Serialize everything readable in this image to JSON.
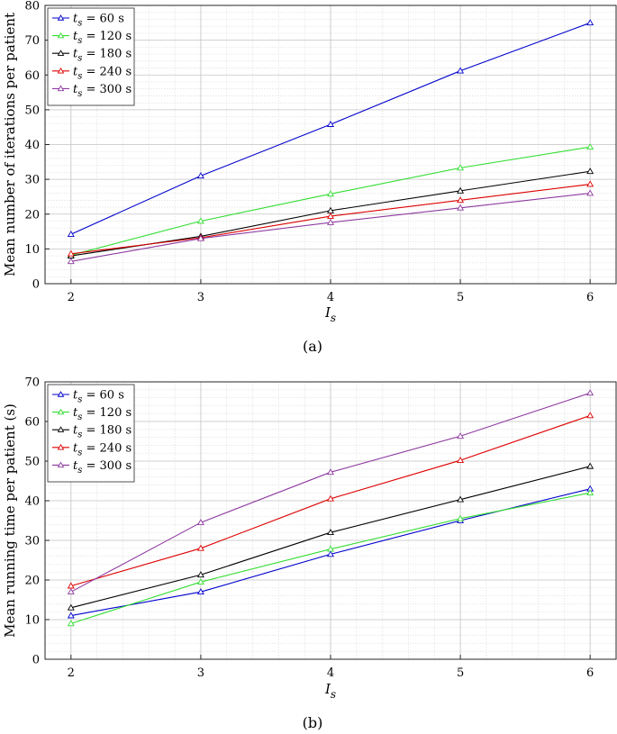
{
  "chart_data": [
    {
      "type": "line",
      "caption": "(a)",
      "title": "",
      "xlabel": "I_s",
      "ylabel": "Mean number of iterations per patient",
      "x": [
        2,
        3,
        4,
        5,
        6
      ],
      "xlim": [
        1.8,
        6.2
      ],
      "ylim": [
        0,
        80
      ],
      "xticks": [
        2,
        3,
        4,
        5,
        6
      ],
      "yticks": [
        0,
        10,
        20,
        30,
        40,
        50,
        60,
        70,
        80
      ],
      "grid": true,
      "legend_position": "top-left",
      "series": [
        {
          "name": "t_s = 60 s",
          "color": "#0000cc",
          "values": [
            14.2,
            31.0,
            45.8,
            61.2,
            75.0
          ]
        },
        {
          "name": "t_s = 120 s",
          "color": "#33dd33",
          "values": [
            8.2,
            18.0,
            25.8,
            33.3,
            39.3
          ]
        },
        {
          "name": "t_s = 180 s",
          "color": "#000000",
          "values": [
            8.0,
            13.6,
            21.0,
            26.7,
            32.3
          ]
        },
        {
          "name": "t_s = 240 s",
          "color": "#dd0000",
          "values": [
            8.6,
            13.2,
            19.4,
            24.0,
            28.6
          ]
        },
        {
          "name": "t_s = 300 s",
          "color": "#8e3ba0",
          "values": [
            6.4,
            13.0,
            17.6,
            21.8,
            26.0
          ]
        }
      ]
    },
    {
      "type": "line",
      "caption": "(b)",
      "title": "",
      "xlabel": "I_s",
      "ylabel": "Mean running time per patient (s)",
      "x": [
        2,
        3,
        4,
        5,
        6
      ],
      "xlim": [
        1.8,
        6.2
      ],
      "ylim": [
        0,
        70
      ],
      "xticks": [
        2,
        3,
        4,
        5,
        6
      ],
      "yticks": [
        0,
        10,
        20,
        30,
        40,
        50,
        60,
        70
      ],
      "grid": true,
      "legend_position": "top-left",
      "series": [
        {
          "name": "t_s = 60 s",
          "color": "#0000cc",
          "values": [
            11.0,
            17.0,
            26.5,
            35.0,
            43.0
          ]
        },
        {
          "name": "t_s = 120 s",
          "color": "#33dd33",
          "values": [
            9.0,
            19.5,
            27.8,
            35.5,
            42.0
          ]
        },
        {
          "name": "t_s = 180 s",
          "color": "#000000",
          "values": [
            13.0,
            21.3,
            32.0,
            40.3,
            48.7
          ]
        },
        {
          "name": "t_s = 240 s",
          "color": "#dd0000",
          "values": [
            18.5,
            28.0,
            40.5,
            50.2,
            61.5
          ]
        },
        {
          "name": "t_s = 300 s",
          "color": "#8e3ba0",
          "values": [
            17.0,
            34.5,
            47.2,
            56.3,
            67.2
          ]
        }
      ]
    }
  ]
}
